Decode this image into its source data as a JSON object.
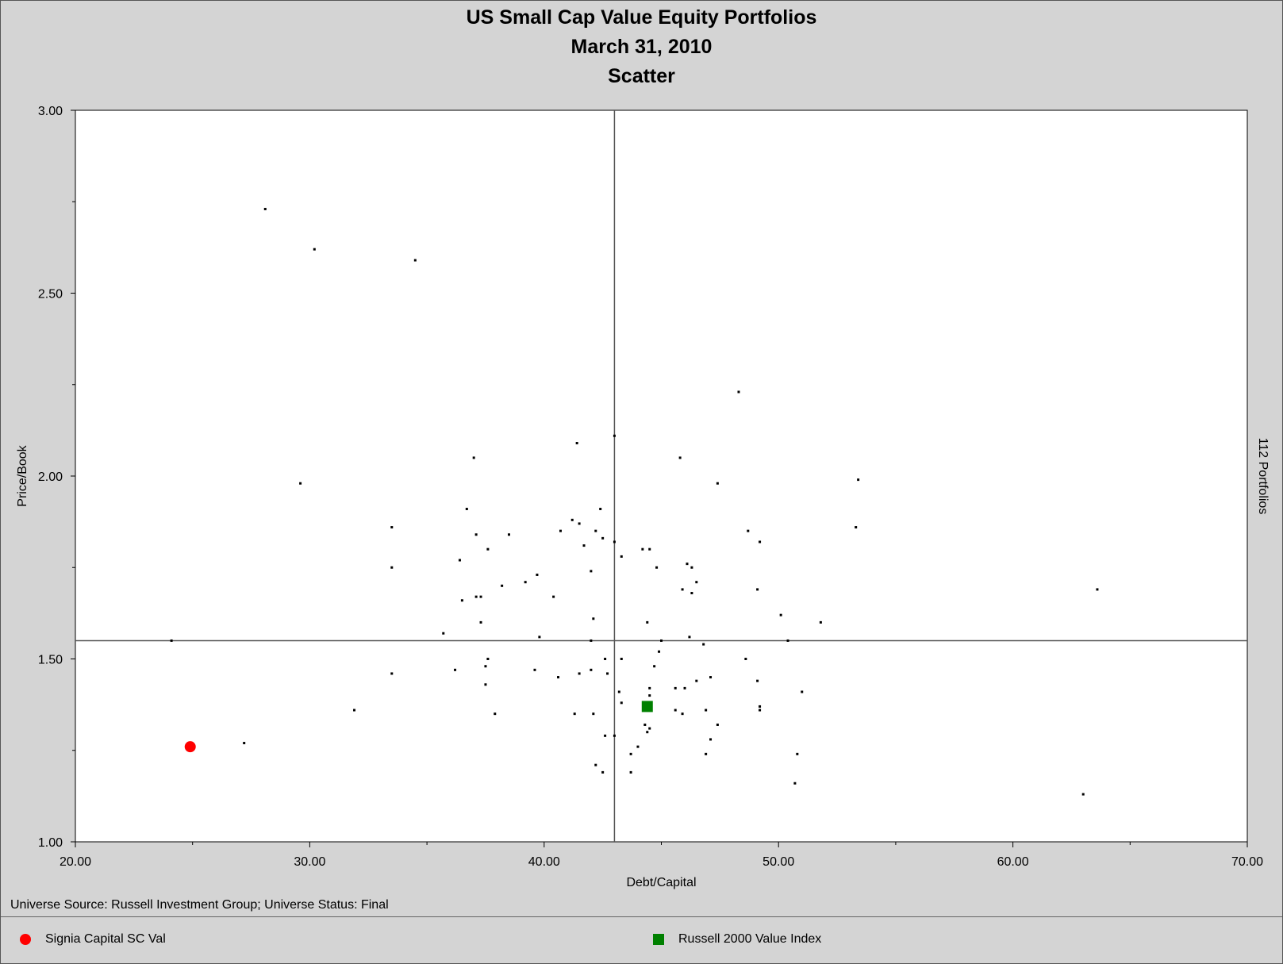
{
  "chart_data": {
    "type": "scatter",
    "title": [
      "US Small Cap Value Equity Portfolios",
      "March 31, 2010",
      "Scatter"
    ],
    "xlabel": "Debt/Capital",
    "ylabel": "Price/Book",
    "right_label": "112 Portfolios",
    "xlim": [
      20,
      70
    ],
    "ylim": [
      1.0,
      3.0
    ],
    "xticks": [
      "20.00",
      "30.00",
      "40.00",
      "50.00",
      "60.00",
      "70.00"
    ],
    "yticks": [
      "1.00",
      "1.50",
      "2.00",
      "2.50",
      "3.00"
    ],
    "grid": false,
    "median_lines": {
      "x": 43.0,
      "y": 1.55
    },
    "universe": {
      "points": [
        [
          28.1,
          2.73
        ],
        [
          30.2,
          2.62
        ],
        [
          34.5,
          2.59
        ],
        [
          48.3,
          2.23
        ],
        [
          43.0,
          2.11
        ],
        [
          41.4,
          2.09
        ],
        [
          37.0,
          2.05
        ],
        [
          45.8,
          2.05
        ],
        [
          29.6,
          1.98
        ],
        [
          47.4,
          1.98
        ],
        [
          53.4,
          1.99
        ],
        [
          42.4,
          1.91
        ],
        [
          36.7,
          1.91
        ],
        [
          33.5,
          1.86
        ],
        [
          53.3,
          1.86
        ],
        [
          41.2,
          1.88
        ],
        [
          41.5,
          1.87
        ],
        [
          40.7,
          1.85
        ],
        [
          37.1,
          1.84
        ],
        [
          38.5,
          1.84
        ],
        [
          42.2,
          1.85
        ],
        [
          42.5,
          1.83
        ],
        [
          48.7,
          1.85
        ],
        [
          43.0,
          1.82
        ],
        [
          41.7,
          1.81
        ],
        [
          49.2,
          1.82
        ],
        [
          37.6,
          1.8
        ],
        [
          44.2,
          1.8
        ],
        [
          44.5,
          1.8
        ],
        [
          43.3,
          1.78
        ],
        [
          36.4,
          1.77
        ],
        [
          46.1,
          1.76
        ],
        [
          46.3,
          1.75
        ],
        [
          33.5,
          1.75
        ],
        [
          44.8,
          1.75
        ],
        [
          42.0,
          1.74
        ],
        [
          39.7,
          1.73
        ],
        [
          46.5,
          1.71
        ],
        [
          38.2,
          1.7
        ],
        [
          39.2,
          1.71
        ],
        [
          45.9,
          1.69
        ],
        [
          49.1,
          1.69
        ],
        [
          46.3,
          1.68
        ],
        [
          63.6,
          1.69
        ],
        [
          37.1,
          1.67
        ],
        [
          37.3,
          1.67
        ],
        [
          40.4,
          1.67
        ],
        [
          36.5,
          1.66
        ],
        [
          50.1,
          1.62
        ],
        [
          42.1,
          1.61
        ],
        [
          44.4,
          1.6
        ],
        [
          37.3,
          1.6
        ],
        [
          51.8,
          1.6
        ],
        [
          35.7,
          1.57
        ],
        [
          39.8,
          1.56
        ],
        [
          24.1,
          1.55
        ],
        [
          42.0,
          1.55
        ],
        [
          45.0,
          1.55
        ],
        [
          46.2,
          1.56
        ],
        [
          50.4,
          1.55
        ],
        [
          46.8,
          1.54
        ],
        [
          44.9,
          1.52
        ],
        [
          37.6,
          1.5
        ],
        [
          42.6,
          1.5
        ],
        [
          43.3,
          1.5
        ],
        [
          48.6,
          1.5
        ],
        [
          37.5,
          1.48
        ],
        [
          44.7,
          1.48
        ],
        [
          36.2,
          1.47
        ],
        [
          39.6,
          1.47
        ],
        [
          42.0,
          1.47
        ],
        [
          42.7,
          1.46
        ],
        [
          33.5,
          1.46
        ],
        [
          40.6,
          1.45
        ],
        [
          41.5,
          1.46
        ],
        [
          47.1,
          1.45
        ],
        [
          37.5,
          1.43
        ],
        [
          46.5,
          1.44
        ],
        [
          49.1,
          1.44
        ],
        [
          44.5,
          1.42
        ],
        [
          45.6,
          1.42
        ],
        [
          46.0,
          1.42
        ],
        [
          43.2,
          1.41
        ],
        [
          51.0,
          1.41
        ],
        [
          44.5,
          1.4
        ],
        [
          43.3,
          1.38
        ],
        [
          31.9,
          1.36
        ],
        [
          37.9,
          1.35
        ],
        [
          45.6,
          1.36
        ],
        [
          46.9,
          1.36
        ],
        [
          49.2,
          1.36
        ],
        [
          49.2,
          1.37
        ],
        [
          41.3,
          1.35
        ],
        [
          42.1,
          1.35
        ],
        [
          45.9,
          1.35
        ],
        [
          47.4,
          1.32
        ],
        [
          44.3,
          1.32
        ],
        [
          44.4,
          1.3
        ],
        [
          42.6,
          1.29
        ],
        [
          43.0,
          1.29
        ],
        [
          47.1,
          1.28
        ],
        [
          27.2,
          1.27
        ],
        [
          44.0,
          1.26
        ],
        [
          43.7,
          1.24
        ],
        [
          46.9,
          1.24
        ],
        [
          50.8,
          1.24
        ],
        [
          42.2,
          1.21
        ],
        [
          42.5,
          1.19
        ],
        [
          43.7,
          1.19
        ],
        [
          50.7,
          1.16
        ],
        [
          63.0,
          1.13
        ],
        [
          44.5,
          1.31
        ]
      ]
    },
    "series": [
      {
        "name": "Signia Capital SC Val",
        "color": "#ff0000",
        "marker": "circle",
        "x": 24.9,
        "y": 1.26
      },
      {
        "name": "Russell 2000 Value Index",
        "color": "#008000",
        "marker": "square",
        "x": 44.4,
        "y": 1.37
      }
    ],
    "footnote": "Universe Source: Russell Investment Group;  Universe Status: Final",
    "legend_position": "bottom"
  }
}
